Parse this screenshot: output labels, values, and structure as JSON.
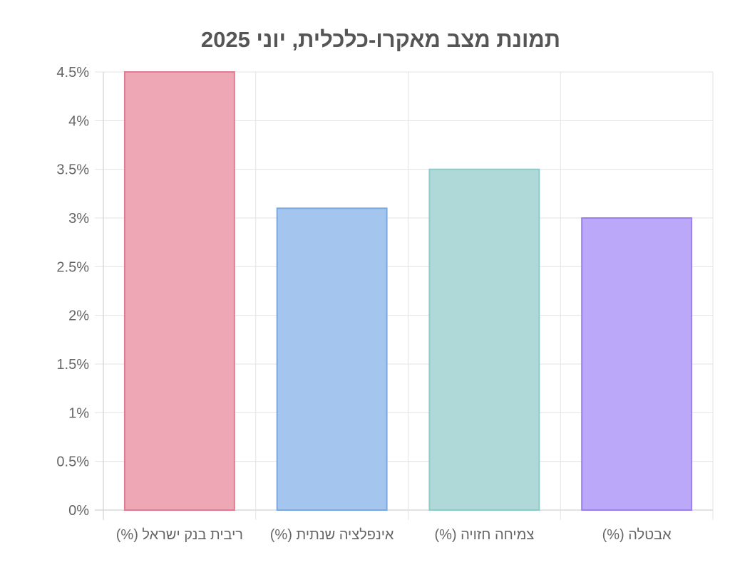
{
  "chart_data": {
    "type": "bar",
    "title": "תמונת מצב מאקרו-כלכלית, יוני 2025",
    "categories": [
      "ריבית בנק ישראל (%)",
      "אינפלציה שנתית (%)",
      "צמיחה חזויה (%)",
      "אבטלה (%)"
    ],
    "values": [
      4.5,
      3.1,
      3.5,
      3.0
    ],
    "ylim": [
      0,
      4.5
    ],
    "yticks": [
      "0%",
      "0.5%",
      "1%",
      "1.5%",
      "2%",
      "2.5%",
      "3%",
      "3.5%",
      "4%",
      "4.5%"
    ],
    "grid": true,
    "legend": "none",
    "bar_fill_colors": [
      "#eea8b5",
      "#a3c5ee",
      "#afd9d8",
      "#bca8f9"
    ],
    "bar_border_colors": [
      "#e07b92",
      "#7aa8df",
      "#8ccbc8",
      "#9b80ef"
    ]
  }
}
